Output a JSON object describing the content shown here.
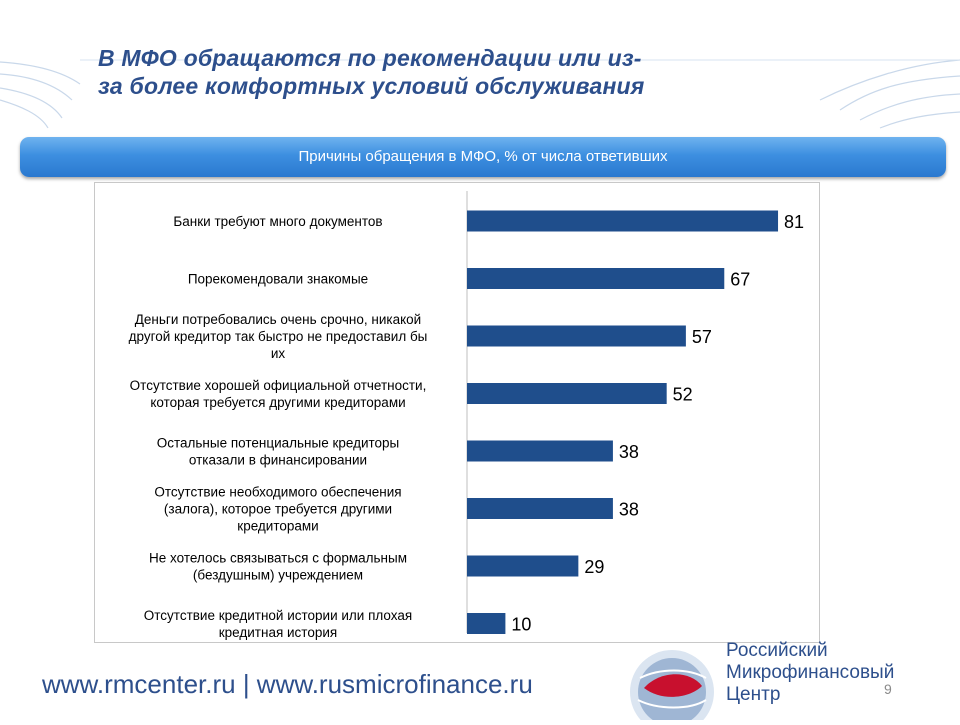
{
  "slide": {
    "title_line1": "В МФО обращаются по рекомендации или из-",
    "title_line2": "за более комфортных условий обслуживания",
    "banner": "Причины обращения в МФО, % от числа ответивших",
    "footer_url": "www.rmcenter.ru | www.rusmicrofinance.ru",
    "page_number": "9",
    "logo_lines": [
      "Российский",
      "Микрофинансовый",
      "Центр"
    ],
    "colors": {
      "title": "#2d4f8c",
      "banner": "#3d8fe0",
      "bar": "#1f4e8c"
    }
  },
  "chart_data": {
    "type": "bar",
    "orientation": "horizontal",
    "title": "Причины обращения в МФО, % от числа ответивших",
    "categories": [
      "Банки требуют много документов",
      "Порекомендовали знакомые",
      "Деньги потребовались очень срочно, никакой другой кредитор так быстро не предоставил бы их",
      "Отсутствие хорошей официальной отчетности, которая требуется другими кредиторами",
      "Остальные потенциальные кредиторы отказали в финансировании",
      "Отсутствие необходимого обеспечения (залога), которое требуется другими кредиторами",
      "Не хотелось связываться с формальным (бездушным) учреждением",
      "Отсутствие кредитной истории или плохая кредитная история"
    ],
    "category_lines": [
      [
        "Банки требуют много документов"
      ],
      [
        "Порекомендовали знакомые"
      ],
      [
        "Деньги потребовались очень срочно, никакой",
        "другой кредитор так быстро не предоставил бы",
        "их"
      ],
      [
        "Отсутствие хорошей официальной отчетности,",
        "которая требуется другими кредиторами"
      ],
      [
        "Остальные потенциальные кредиторы",
        "отказали в финансировании"
      ],
      [
        "Отсутствие необходимого обеспечения",
        "(залога), которое требуется другими",
        "кредиторами"
      ],
      [
        "Не хотелось связываться с формальным",
        "(бездушным) учреждением"
      ],
      [
        "Отсутствие кредитной истории или плохая",
        "кредитная история"
      ]
    ],
    "values": [
      81,
      67,
      57,
      52,
      38,
      38,
      29,
      10
    ],
    "data_labels": [
      "81",
      "67",
      "57",
      "52",
      "38",
      "38",
      "29",
      "10"
    ],
    "xlim": [
      0,
      100
    ],
    "grid": false,
    "legend": "none"
  }
}
